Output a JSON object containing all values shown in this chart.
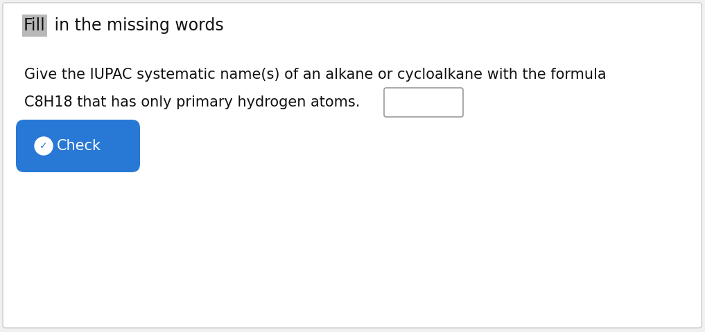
{
  "bg_color": "#f0f0f0",
  "panel_color": "#ffffff",
  "panel_edge_color": "#cccccc",
  "title_fill_word": "Fill",
  "title_rest": " in the missing words",
  "title_highlight_color": "#b8b8b8",
  "title_fontsize": 17,
  "body_line1": "Give the IUPAC systematic name(s) of an alkane or cycloalkane with the formula",
  "body_line2": "C8H18 that has only primary hydrogen atoms.",
  "body_fontsize": 15,
  "text_color": "#111111",
  "input_box_color": "#ffffff",
  "input_box_edge_color": "#999999",
  "button_color": "#2878d6",
  "button_text": "Check",
  "button_text_color": "#ffffff",
  "button_fontsize": 15
}
